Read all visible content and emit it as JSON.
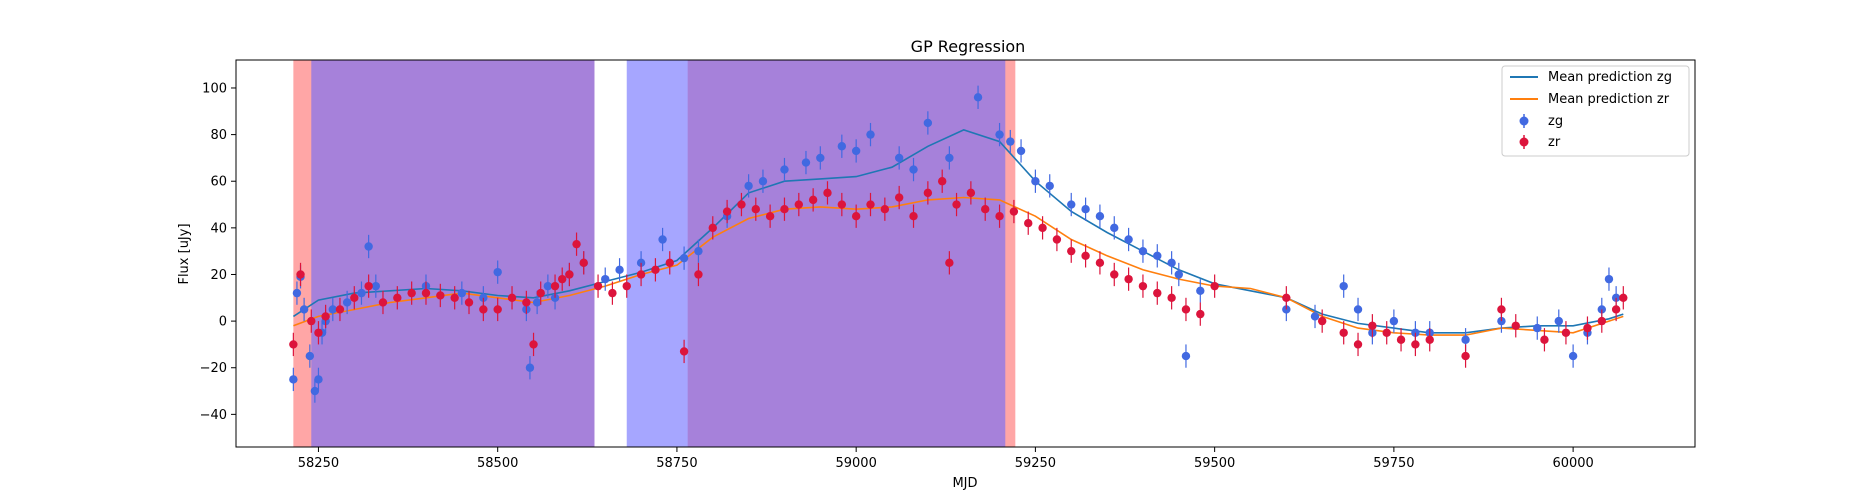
{
  "chart_data": {
    "type": "scatter",
    "title": "GP Regression",
    "xlabel": "MJD",
    "ylabel": "Flux [uJy]",
    "xlim": [
      58135,
      60170
    ],
    "ylim": [
      -54,
      112
    ],
    "xticks": [
      58250,
      58500,
      58750,
      59000,
      59250,
      59500,
      59750,
      60000
    ],
    "yticks": [
      -40,
      -20,
      0,
      20,
      40,
      60,
      80,
      100
    ],
    "legend_position": "top-right",
    "colors": {
      "zg_points": "#4169e1",
      "zr_points": "#dc143c",
      "zg_mean": "#1f77b4",
      "zr_mean": "#ff7f0e",
      "red_band": "#ff6666",
      "blue_band": "#6666ff",
      "overlap_band": "#c46ba5"
    },
    "shaded_regions": [
      {
        "band": "red",
        "x0": 58215,
        "x1": 58635
      },
      {
        "band": "red",
        "x0": 58765,
        "x1": 59222
      },
      {
        "band": "blue",
        "x0": 58240,
        "x1": 58635
      },
      {
        "band": "blue",
        "x0": 58680,
        "x1": 59208
      }
    ],
    "series": [
      {
        "name": "Mean prediction zg",
        "kind": "line",
        "x": [
          58215,
          58250,
          58300,
          58350,
          58400,
          58450,
          58500,
          58550,
          58600,
          58650,
          58700,
          58750,
          58800,
          58850,
          58900,
          58950,
          59000,
          59050,
          59100,
          59150,
          59200,
          59250,
          59300,
          59350,
          59400,
          59450,
          59500,
          59550,
          59600,
          59650,
          59700,
          59750,
          59800,
          59850,
          59900,
          59950,
          60000,
          60050,
          60070
        ],
        "y": [
          2,
          9,
          12,
          13,
          14,
          13,
          11,
          10,
          13,
          17,
          21,
          26,
          40,
          55,
          60,
          61,
          62,
          66,
          75,
          82,
          77,
          60,
          47,
          38,
          30,
          22,
          16,
          13,
          10,
          3,
          -1,
          -3,
          -5,
          -5,
          -3,
          -2,
          -2,
          1,
          3
        ]
      },
      {
        "name": "Mean prediction zr",
        "kind": "line",
        "x": [
          58215,
          58250,
          58300,
          58350,
          58400,
          58450,
          58500,
          58550,
          58600,
          58650,
          58700,
          58750,
          58800,
          58850,
          58900,
          58950,
          59000,
          59050,
          59100,
          59150,
          59200,
          59250,
          59300,
          59350,
          59400,
          59450,
          59500,
          59550,
          59600,
          59650,
          59700,
          59750,
          59800,
          59850,
          59900,
          59950,
          60000,
          60050,
          60070
        ],
        "y": [
          -2,
          2,
          5,
          8,
          10,
          12,
          10,
          8,
          11,
          15,
          20,
          24,
          36,
          44,
          48,
          49,
          48,
          49,
          52,
          53,
          52,
          45,
          35,
          28,
          22,
          18,
          15,
          14,
          10,
          2,
          -3,
          -5,
          -6,
          -6,
          -3,
          -4,
          -5,
          0,
          2
        ]
      },
      {
        "name": "zg",
        "kind": "errorbar",
        "x": [
          58215,
          58220,
          58225,
          58230,
          58238,
          58245,
          58250,
          58255,
          58260,
          58270,
          58290,
          58310,
          58320,
          58330,
          58400,
          58450,
          58480,
          58500,
          58540,
          58545,
          58555,
          58570,
          58580,
          58600,
          58620,
          58650,
          58670,
          58700,
          58730,
          58760,
          58780,
          58820,
          58850,
          58870,
          58900,
          58930,
          58950,
          58980,
          59000,
          59020,
          59060,
          59080,
          59100,
          59130,
          59170,
          59200,
          59215,
          59230,
          59250,
          59270,
          59300,
          59320,
          59340,
          59360,
          59380,
          59400,
          59420,
          59440,
          59450,
          59460,
          59480,
          59600,
          59640,
          59680,
          59700,
          59720,
          59750,
          59780,
          59800,
          59850,
          59900,
          59950,
          59980,
          60000,
          60020,
          60040,
          60050,
          60060
        ],
        "y": [
          -25,
          12,
          19,
          5,
          -15,
          -30,
          -25,
          -5,
          0,
          5,
          8,
          12,
          32,
          15,
          15,
          12,
          10,
          21,
          5,
          -20,
          8,
          15,
          10,
          20,
          25,
          18,
          22,
          25,
          35,
          27,
          30,
          45,
          58,
          60,
          65,
          68,
          70,
          75,
          73,
          80,
          70,
          65,
          85,
          70,
          96,
          80,
          77,
          73,
          60,
          58,
          50,
          48,
          45,
          40,
          35,
          30,
          28,
          25,
          20,
          -15,
          13,
          5,
          2,
          15,
          5,
          -5,
          0,
          -5,
          -5,
          -8,
          0,
          -3,
          0,
          -15,
          -5,
          5,
          18,
          10
        ],
        "err": [
          5,
          5,
          5,
          5,
          5,
          5,
          5,
          5,
          5,
          5,
          5,
          5,
          5,
          5,
          5,
          5,
          5,
          5,
          5,
          5,
          5,
          5,
          5,
          5,
          5,
          5,
          5,
          5,
          5,
          5,
          5,
          5,
          5,
          5,
          5,
          5,
          5,
          5,
          5,
          5,
          5,
          5,
          5,
          5,
          5,
          5,
          5,
          5,
          5,
          5,
          5,
          5,
          5,
          5,
          5,
          5,
          5,
          5,
          5,
          5,
          5,
          5,
          5,
          5,
          5,
          5,
          5,
          5,
          5,
          5,
          5,
          5,
          5,
          5,
          5,
          5,
          5,
          5
        ]
      },
      {
        "name": "zr",
        "kind": "errorbar",
        "x": [
          58215,
          58225,
          58240,
          58250,
          58260,
          58280,
          58300,
          58320,
          58340,
          58360,
          58380,
          58400,
          58420,
          58440,
          58460,
          58480,
          58500,
          58520,
          58540,
          58550,
          58560,
          58580,
          58590,
          58600,
          58610,
          58620,
          58640,
          58660,
          58680,
          58700,
          58720,
          58740,
          58760,
          58780,
          58800,
          58820,
          58840,
          58860,
          58880,
          58900,
          58920,
          58940,
          58960,
          58980,
          59000,
          59020,
          59040,
          59060,
          59080,
          59100,
          59120,
          59130,
          59140,
          59160,
          59180,
          59200,
          59220,
          59240,
          59260,
          59280,
          59300,
          59320,
          59340,
          59360,
          59380,
          59400,
          59420,
          59440,
          59460,
          59480,
          59500,
          59600,
          59650,
          59680,
          59700,
          59720,
          59740,
          59760,
          59780,
          59800,
          59850,
          59900,
          59920,
          59960,
          59990,
          60020,
          60040,
          60060,
          60070
        ],
        "y": [
          -10,
          20,
          0,
          -5,
          2,
          5,
          10,
          15,
          8,
          10,
          12,
          12,
          11,
          10,
          8,
          5,
          5,
          10,
          8,
          -10,
          12,
          15,
          18,
          20,
          33,
          25,
          15,
          12,
          15,
          20,
          22,
          25,
          -13,
          20,
          40,
          47,
          50,
          48,
          45,
          48,
          50,
          52,
          55,
          50,
          45,
          50,
          48,
          53,
          45,
          55,
          60,
          25,
          50,
          55,
          48,
          45,
          47,
          42,
          40,
          35,
          30,
          28,
          25,
          20,
          18,
          15,
          12,
          10,
          5,
          3,
          15,
          10,
          0,
          -5,
          -10,
          -2,
          -5,
          -8,
          -10,
          -8,
          -15,
          5,
          -2,
          -8,
          -5,
          -3,
          0,
          5,
          10
        ],
        "err": [
          5,
          5,
          5,
          5,
          5,
          5,
          5,
          5,
          5,
          5,
          5,
          5,
          5,
          5,
          5,
          5,
          5,
          5,
          5,
          5,
          5,
          5,
          5,
          5,
          5,
          5,
          5,
          5,
          5,
          5,
          5,
          5,
          5,
          5,
          5,
          5,
          5,
          5,
          5,
          5,
          5,
          5,
          5,
          5,
          5,
          5,
          5,
          5,
          5,
          5,
          5,
          5,
          5,
          5,
          5,
          5,
          5,
          5,
          5,
          5,
          5,
          5,
          5,
          5,
          5,
          5,
          5,
          5,
          5,
          5,
          5,
          5,
          5,
          5,
          5,
          5,
          5,
          5,
          5,
          5,
          5,
          5,
          5,
          5,
          5,
          5,
          5,
          5,
          5
        ]
      }
    ]
  }
}
